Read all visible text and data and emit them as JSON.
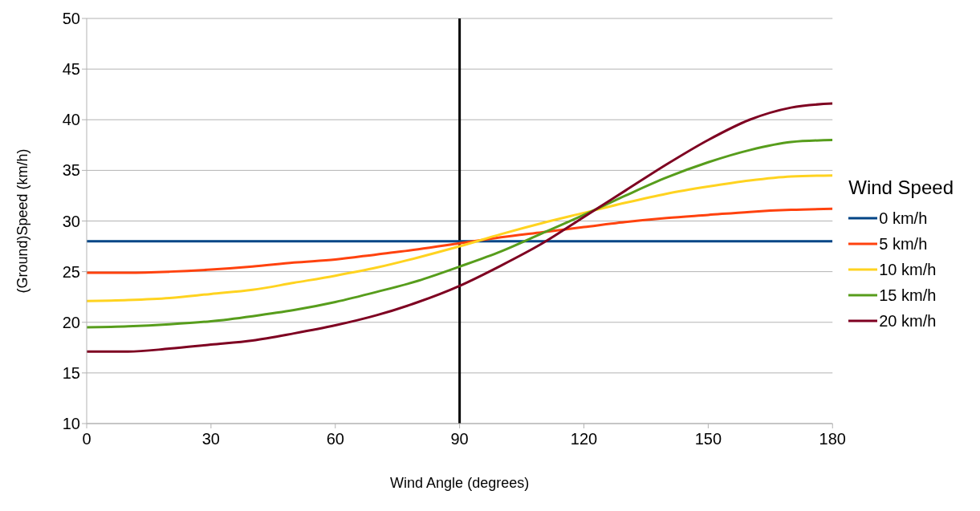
{
  "chart_data": {
    "type": "line",
    "xlabel": "Wind Angle (degrees)",
    "ylabel": "(Ground)Speed (km/h)",
    "legend_title": "Wind Speed",
    "x": [
      0,
      10,
      20,
      30,
      40,
      50,
      60,
      70,
      80,
      90,
      100,
      110,
      120,
      130,
      140,
      150,
      160,
      170,
      180
    ],
    "series": [
      {
        "name": "0 km/h",
        "color": "#004586",
        "values": [
          28,
          28,
          28,
          28,
          28,
          28,
          28,
          28,
          28,
          28,
          28,
          28,
          28,
          28,
          28,
          28,
          28,
          28,
          28
        ]
      },
      {
        "name": "5 km/h",
        "color": "#ff420e",
        "values": [
          24.9,
          24.9,
          25.0,
          25.2,
          25.5,
          25.9,
          26.2,
          26.7,
          27.2,
          27.8,
          28.4,
          28.9,
          29.4,
          29.9,
          30.3,
          30.6,
          30.9,
          31.1,
          31.2
        ]
      },
      {
        "name": "10 km/h",
        "color": "#ffd320",
        "values": [
          22.1,
          22.2,
          22.4,
          22.8,
          23.2,
          23.9,
          24.6,
          25.4,
          26.4,
          27.5,
          28.7,
          29.8,
          30.8,
          31.8,
          32.7,
          33.4,
          34.0,
          34.4,
          34.5
        ]
      },
      {
        "name": "15 km/h",
        "color": "#579d1c",
        "values": [
          19.5,
          19.6,
          19.8,
          20.1,
          20.6,
          21.2,
          22.0,
          23.0,
          24.1,
          25.5,
          27.0,
          28.8,
          30.6,
          32.5,
          34.3,
          35.8,
          37.0,
          37.8,
          38.0
        ]
      },
      {
        "name": "20 km/h",
        "color": "#7e0021",
        "values": [
          17.1,
          17.1,
          17.4,
          17.8,
          18.2,
          18.9,
          19.7,
          20.7,
          22.0,
          23.6,
          25.6,
          27.8,
          30.4,
          33.0,
          35.6,
          38.0,
          40.0,
          41.2,
          41.6
        ]
      }
    ],
    "xlim": [
      0,
      180
    ],
    "xticks": [
      0,
      30,
      60,
      90,
      120,
      150,
      180
    ],
    "ylim": [
      10,
      50
    ],
    "yticks": [
      10,
      15,
      20,
      25,
      30,
      35,
      40,
      45,
      50
    ],
    "ref_lines": [
      {
        "axis": "x",
        "value": 90,
        "color": "#000000"
      }
    ],
    "grid": "y",
    "legend": "right",
    "marker": "none",
    "line_style": "solid"
  }
}
